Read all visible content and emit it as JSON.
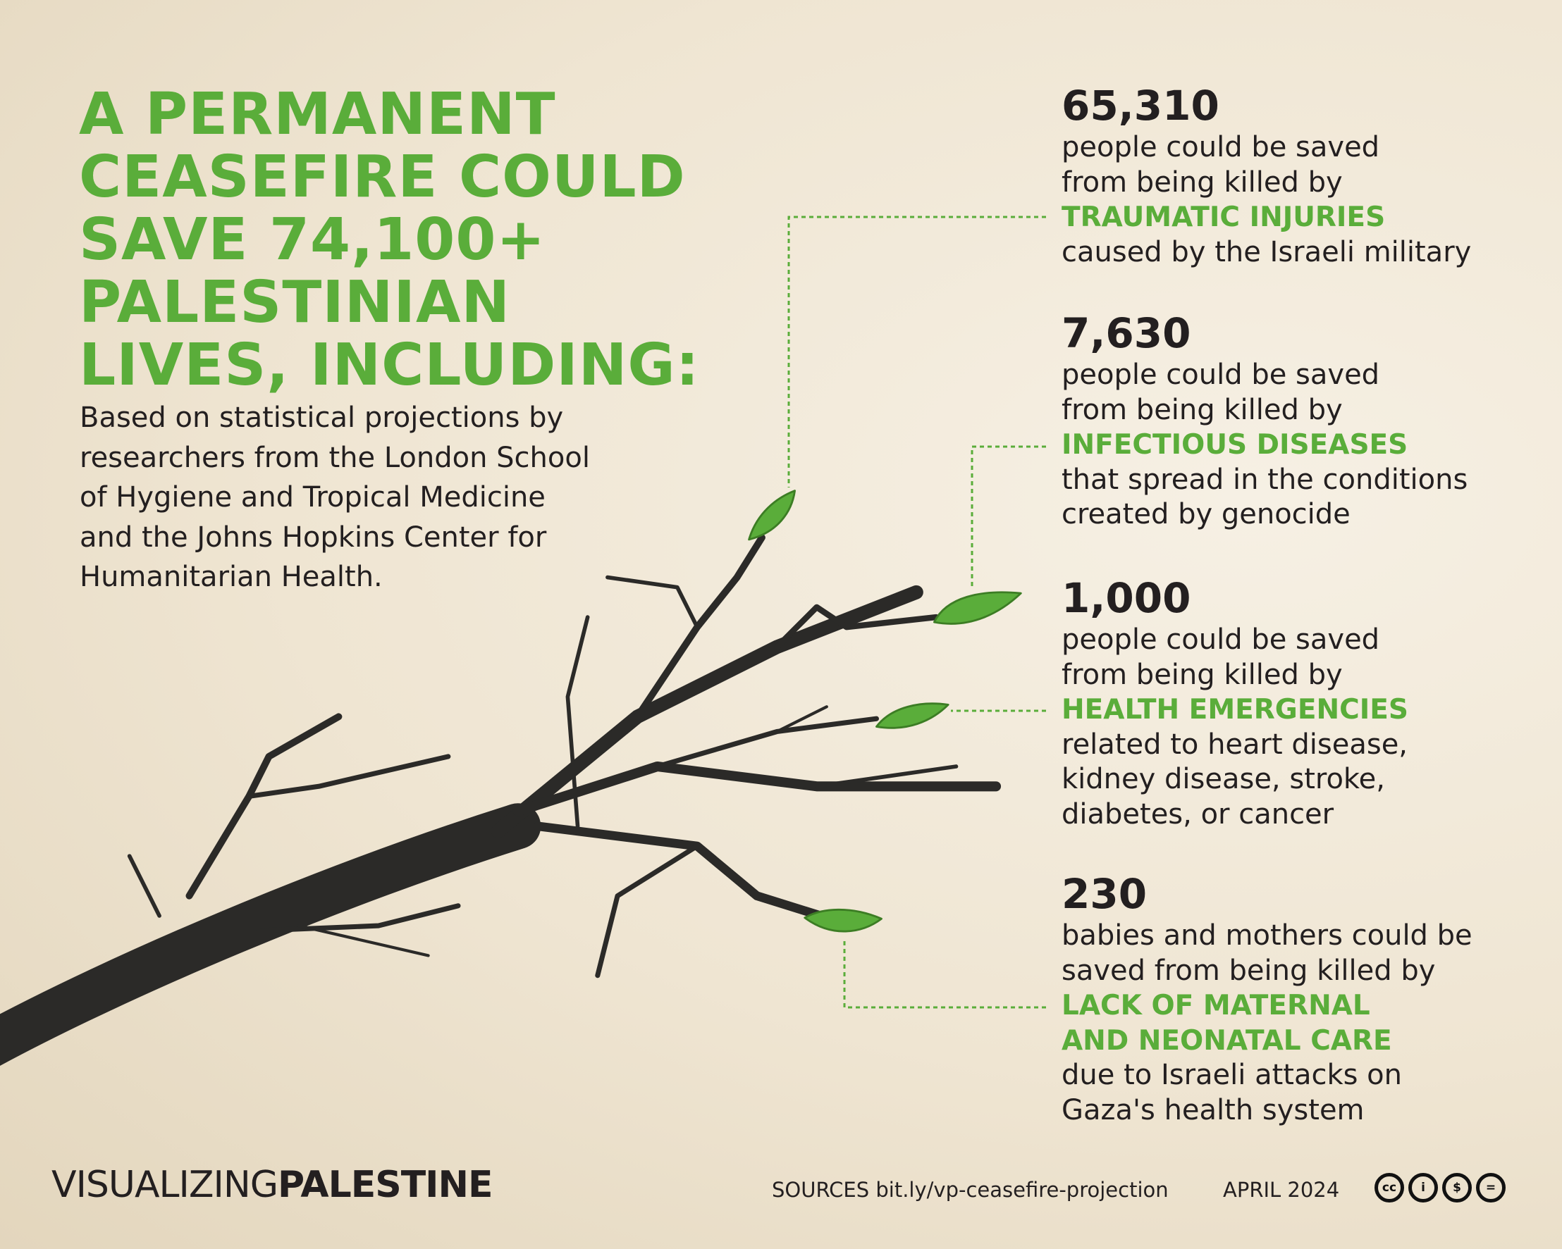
{
  "headline": [
    "A PERMANENT",
    "CEASEFIRE COULD",
    "SAVE 74,100+",
    "PALESTINIAN",
    "LIVES, INCLUDING:"
  ],
  "intro": [
    "Based on statistical projections by",
    "researchers from the London School",
    "of Hygiene and Tropical Medicine",
    "and the Johns Hopkins Center for",
    "Humanitarian Health."
  ],
  "stats": [
    {
      "number": "65,310",
      "lines_before": [
        "people could be saved",
        "from being killed by"
      ],
      "cause": [
        "TRAUMATIC INJURIES"
      ],
      "lines_after": [
        "caused by the Israeli military"
      ]
    },
    {
      "number": "7,630",
      "lines_before": [
        "people could be saved",
        "from being killed by"
      ],
      "cause": [
        "INFECTIOUS DISEASES"
      ],
      "lines_after": [
        "that spread in the conditions",
        "created by genocide"
      ]
    },
    {
      "number": "1,000",
      "lines_before": [
        "people could be saved",
        "from being killed by"
      ],
      "cause": [
        "HEALTH EMERGENCIES"
      ],
      "lines_after": [
        "related to heart disease,",
        "kidney disease, stroke,",
        "diabetes, or cancer"
      ]
    },
    {
      "number": "230",
      "lines_before": [
        "babies and mothers could be",
        "saved from being killed by"
      ],
      "cause": [
        "LACK OF MATERNAL",
        "AND NEONATAL CARE"
      ],
      "lines_after": [
        "due to Israeli attacks on",
        "Gaza's health system"
      ]
    }
  ],
  "footer": {
    "logo_light": "VISUALIZING",
    "logo_bold": "PALESTINE",
    "sources": "SOURCES bit.ly/vp-ceasefire-projection",
    "date": "APRIL 2024",
    "license_icons": [
      "cc-icon",
      "by-icon",
      "nc-icon",
      "nd-icon"
    ],
    "license_glyphs": [
      "cc",
      "i",
      "$",
      "="
    ]
  },
  "colors": {
    "accent": "#5aad3a",
    "text": "#231f20",
    "background": "#efe5d2"
  }
}
